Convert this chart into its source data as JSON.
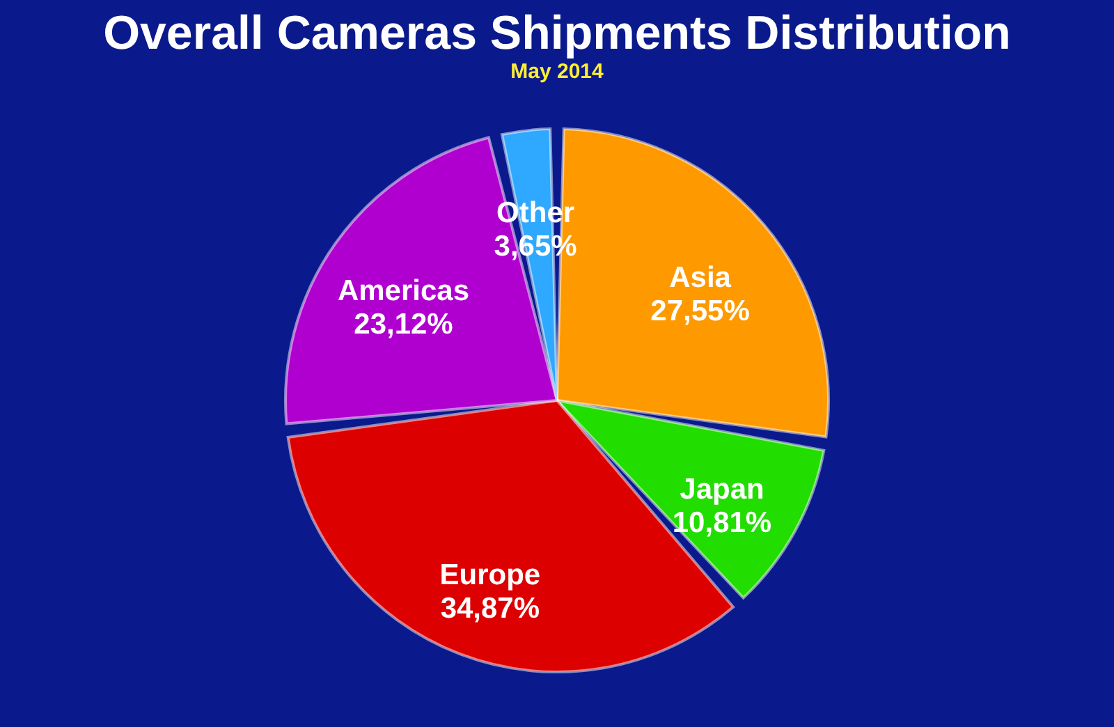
{
  "chart_data": {
    "type": "pie",
    "title": "Overall Cameras Shipments Distribution",
    "subtitle": "May 2014",
    "categories": [
      "Asia",
      "Japan",
      "Europe",
      "Americas",
      "Other"
    ],
    "values": [
      27.55,
      10.81,
      34.87,
      23.12,
      3.65
    ],
    "value_labels": [
      "27,55%",
      "10,81%",
      "34,87%",
      "23,12%",
      "3,65%"
    ],
    "colors": [
      "#ff9900",
      "#22dd00",
      "#dd0000",
      "#b000d0",
      "#2fa8ff"
    ],
    "legend": false
  }
}
